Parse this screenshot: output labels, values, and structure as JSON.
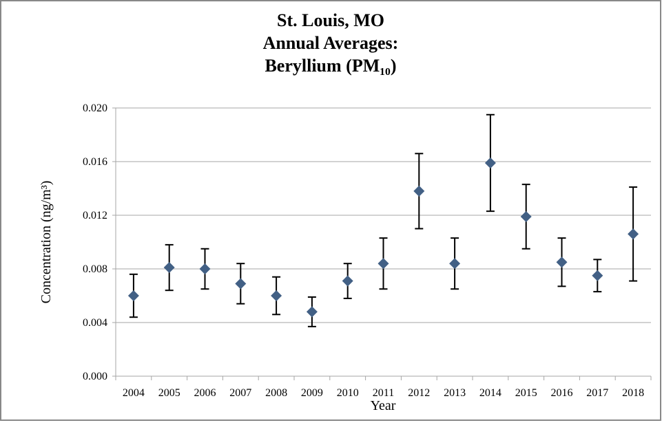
{
  "chart_data": {
    "type": "scatter",
    "title": [
      "St. Louis, MO",
      "Annual Averages:",
      "Beryllium (PM₁₀)"
    ],
    "x_label": "Year",
    "y_label": "Concentration (ng/m³)",
    "categories": [
      "2004",
      "2005",
      "2006",
      "2007",
      "2008",
      "2009",
      "2010",
      "2011",
      "2012",
      "2013",
      "2014",
      "2015",
      "2016",
      "2017",
      "2018"
    ],
    "values": [
      0.006,
      0.0081,
      0.008,
      0.0069,
      0.006,
      0.0048,
      0.0071,
      0.0084,
      0.0138,
      0.0084,
      0.0159,
      0.0119,
      0.0085,
      0.0075,
      0.0106
    ],
    "errors": [
      0.0016,
      0.0017,
      0.0015,
      0.0015,
      0.0014,
      0.0011,
      0.0013,
      0.0019,
      0.0028,
      0.0019,
      0.0036,
      0.0024,
      0.0018,
      0.0012,
      0.0035
    ],
    "color": "#426085",
    "ylim": [
      0,
      0.02
    ],
    "yticks": [
      {
        "value": 0,
        "label": "0.000"
      },
      {
        "value": 0.004,
        "label": "0.004"
      },
      {
        "value": 0.008,
        "label": "0.008"
      },
      {
        "value": 0.012,
        "label": "0.012"
      },
      {
        "value": 0.016,
        "label": "0.016"
      },
      {
        "value": 0.02,
        "label": "0.020"
      }
    ],
    "grid": true
  }
}
